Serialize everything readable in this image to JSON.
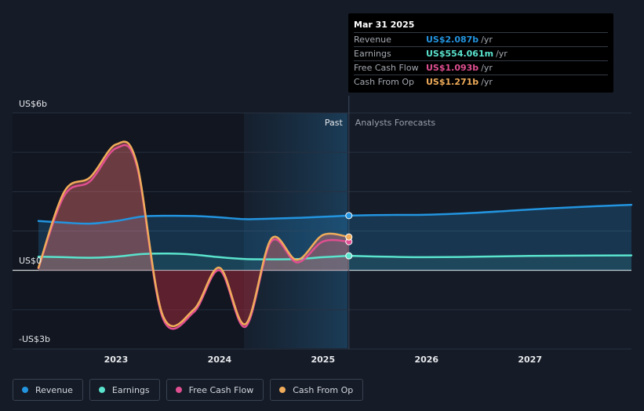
{
  "chart_data": {
    "type": "line",
    "y_axis": {
      "labels": [
        "US$6b",
        "US$0",
        "-US$3b"
      ],
      "range": [
        -3,
        6
      ],
      "unit": "billions USD"
    },
    "x_axis": {
      "ticks": [
        "2023",
        "2024",
        "2025",
        "2026",
        "2027"
      ],
      "range": [
        2022.0,
        2027.98
      ]
    },
    "regions": {
      "past_label": "Past",
      "forecast_label": "Analysts Forecasts",
      "divider_x": 2025.25
    },
    "series": [
      {
        "name": "Revenue",
        "key": "revenue",
        "color": "#2394df",
        "points": [
          [
            2022.25,
            1.88
          ],
          [
            2022.5,
            1.82
          ],
          [
            2022.75,
            1.78
          ],
          [
            2023.0,
            1.88
          ],
          [
            2023.25,
            2.05
          ],
          [
            2023.5,
            2.08
          ],
          [
            2023.75,
            2.07
          ],
          [
            2024.0,
            2.02
          ],
          [
            2024.25,
            1.95
          ],
          [
            2024.5,
            1.97
          ],
          [
            2024.75,
            2.0
          ],
          [
            2025.0,
            2.04
          ],
          [
            2025.25,
            2.087
          ]
        ],
        "forecast": [
          [
            2025.25,
            2.087
          ],
          [
            2025.6,
            2.11
          ],
          [
            2026.0,
            2.12
          ],
          [
            2026.5,
            2.2
          ],
          [
            2027.0,
            2.32
          ],
          [
            2027.5,
            2.42
          ],
          [
            2027.98,
            2.5
          ]
        ]
      },
      {
        "name": "Earnings",
        "key": "earnings",
        "color": "#5ae3cd",
        "points": [
          [
            2022.25,
            0.52
          ],
          [
            2022.5,
            0.5
          ],
          [
            2022.75,
            0.48
          ],
          [
            2023.0,
            0.52
          ],
          [
            2023.25,
            0.62
          ],
          [
            2023.5,
            0.64
          ],
          [
            2023.75,
            0.6
          ],
          [
            2024.0,
            0.5
          ],
          [
            2024.25,
            0.43
          ],
          [
            2024.5,
            0.42
          ],
          [
            2024.75,
            0.43
          ],
          [
            2025.0,
            0.5
          ],
          [
            2025.25,
            0.554
          ]
        ],
        "forecast": [
          [
            2025.25,
            0.554
          ],
          [
            2025.6,
            0.52
          ],
          [
            2026.0,
            0.5
          ],
          [
            2026.5,
            0.52
          ],
          [
            2027.0,
            0.55
          ],
          [
            2027.5,
            0.56
          ],
          [
            2027.98,
            0.57
          ]
        ]
      },
      {
        "name": "Free Cash Flow",
        "key": "fcf",
        "color": "#e04f91",
        "points": [
          [
            2022.25,
            0.08
          ],
          [
            2022.5,
            2.85
          ],
          [
            2022.75,
            3.4
          ],
          [
            2023.0,
            4.65
          ],
          [
            2023.2,
            4.0
          ],
          [
            2023.45,
            -1.8
          ],
          [
            2023.75,
            -1.6
          ],
          [
            2024.0,
            0.0
          ],
          [
            2024.25,
            -2.15
          ],
          [
            2024.5,
            1.1
          ],
          [
            2024.75,
            0.3
          ],
          [
            2025.0,
            1.1
          ],
          [
            2025.25,
            1.093
          ]
        ]
      },
      {
        "name": "Cash From Op",
        "key": "cfo",
        "color": "#f0ac5a",
        "points": [
          [
            2022.25,
            0.1
          ],
          [
            2022.5,
            3.0
          ],
          [
            2022.75,
            3.55
          ],
          [
            2023.0,
            4.8
          ],
          [
            2023.2,
            4.1
          ],
          [
            2023.45,
            -1.7
          ],
          [
            2023.75,
            -1.5
          ],
          [
            2024.0,
            0.1
          ],
          [
            2024.25,
            -2.05
          ],
          [
            2024.5,
            1.2
          ],
          [
            2024.75,
            0.4
          ],
          [
            2025.0,
            1.35
          ],
          [
            2025.25,
            1.271
          ]
        ]
      }
    ]
  },
  "tooltip": {
    "date": "Mar 31 2025",
    "rows": [
      {
        "label": "Revenue",
        "value": "US$2.087b",
        "unit": "/yr",
        "color": "#2394df"
      },
      {
        "label": "Earnings",
        "value": "US$554.061m",
        "unit": "/yr",
        "color": "#5ae3cd"
      },
      {
        "label": "Free Cash Flow",
        "value": "US$1.093b",
        "unit": "/yr",
        "color": "#e04f91"
      },
      {
        "label": "Cash From Op",
        "value": "US$1.271b",
        "unit": "/yr",
        "color": "#f0ac5a"
      }
    ]
  },
  "legend": [
    {
      "label": "Revenue",
      "color": "#2394df"
    },
    {
      "label": "Earnings",
      "color": "#5ae3cd"
    },
    {
      "label": "Free Cash Flow",
      "color": "#e04f91"
    },
    {
      "label": "Cash From Op",
      "color": "#f0ac5a"
    }
  ]
}
